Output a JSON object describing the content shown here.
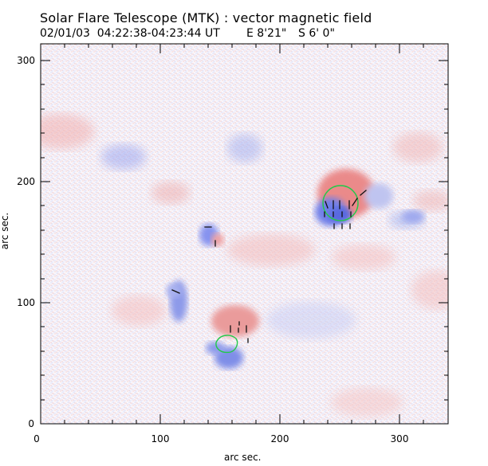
{
  "header": {
    "title": "Solar Flare Telescope (MTK) : vector magnetic field",
    "date_time": "02/01/03  04:22:38-04:23:44 UT",
    "coordinates_east": "E 8'21\"",
    "coordinates_south": "S 6' 0\""
  },
  "axes": {
    "x_label": "arc sec.",
    "y_label": "arc sec.",
    "x_ticks": [
      "0",
      "100",
      "200",
      "300"
    ],
    "y_ticks": [
      "0",
      "100",
      "200",
      "300"
    ],
    "x_range": [
      0,
      345
    ],
    "y_range": [
      0,
      317
    ]
  },
  "colors": {
    "positive_field": "#ea7e7e",
    "negative_field": "#7d8ee8",
    "contour": "#22c94a",
    "vectors": "#111111",
    "background_field": "#f7f1f5"
  },
  "icons": {
    "green_contour": "circle-outline-icon",
    "field_vectors": "short-black-line-icon"
  }
}
